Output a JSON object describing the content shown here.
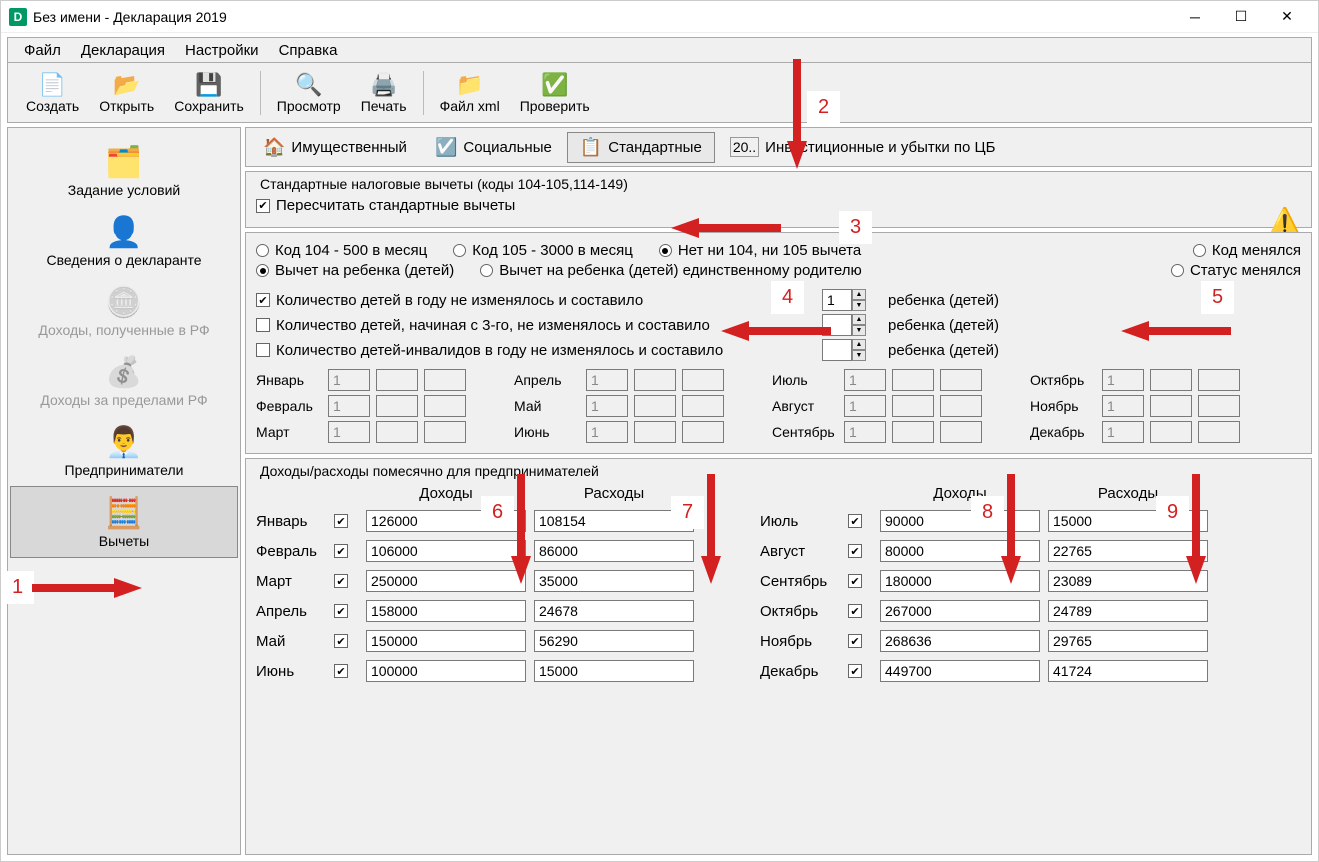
{
  "window": {
    "title": "Без имени - Декларация 2019"
  },
  "menu": {
    "file": "Файл",
    "declaration": "Декларация",
    "settings": "Настройки",
    "help": "Справка"
  },
  "toolbar": {
    "create": "Создать",
    "open": "Открыть",
    "save": "Сохранить",
    "preview": "Просмотр",
    "print": "Печать",
    "xml": "Файл xml",
    "check": "Проверить"
  },
  "sidebar": {
    "conditions": "Задание условий",
    "declarant": "Сведения о декларанте",
    "income_rf": "Доходы, полученные в РФ",
    "income_abroad": "Доходы за пределами РФ",
    "entrepreneur": "Предприниматели",
    "deductions": "Вычеты"
  },
  "tabs": {
    "property": "Имущественный",
    "social": "Социальные",
    "standard": "Стандартные",
    "investment": "Инвестиционные и убытки по ЦБ"
  },
  "group1": {
    "legend": "Стандартные налоговые вычеты (коды 104-105,114-149)",
    "recalc": "Пересчитать стандартные вычеты",
    "code104": "Код 104 - 500 в месяц",
    "code105": "Код 105 - 3000 в месяц",
    "noCode": "Нет ни 104, ни 105 вычета",
    "codeChanged": "Код менялся",
    "childDed": "Вычет на ребенка (детей)",
    "childDedSingle": "Вычет на ребенка (детей) единственному родителю",
    "statusChanged": "Статус менялся",
    "childrenConst": "Количество детей в году не изменялось и составило",
    "childrenFrom3": "Количество детей, начиная с 3-го, не изменялось и составило",
    "childrenDisabled": "Количество детей-инвалидов в году не изменялось и составило",
    "child_suffix": "ребенка (детей)",
    "children_count": "1"
  },
  "months": {
    "m1": "Январь",
    "m2": "Февраль",
    "m3": "Март",
    "m4": "Апрель",
    "m5": "Май",
    "m6": "Июнь",
    "m7": "Июль",
    "m8": "Август",
    "m9": "Сентябрь",
    "m10": "Октябрь",
    "m11": "Ноябрь",
    "m12": "Декабрь",
    "v1": "1",
    "v2": "1",
    "v3": "1",
    "v4": "1",
    "v5": "1",
    "v6": "1",
    "v7": "1",
    "v8": "1",
    "v9": "1",
    "v10": "1",
    "v11": "1",
    "v12": "1"
  },
  "ie": {
    "legend": "Доходы/расходы помесячно для предпринимателей",
    "income_h": "Доходы",
    "expense_h": "Расходы",
    "rows": [
      {
        "m": "Январь",
        "inc": "126000",
        "exp": "108154",
        "m2": "Июль",
        "inc2": "90000",
        "exp2": "15000"
      },
      {
        "m": "Февраль",
        "inc": "106000",
        "exp": "86000",
        "m2": "Август",
        "inc2": "80000",
        "exp2": "22765"
      },
      {
        "m": "Март",
        "inc": "250000",
        "exp": "35000",
        "m2": "Сентябрь",
        "inc2": "180000",
        "exp2": "23089"
      },
      {
        "m": "Апрель",
        "inc": "158000",
        "exp": "24678",
        "m2": "Октябрь",
        "inc2": "267000",
        "exp2": "24789"
      },
      {
        "m": "Май",
        "inc": "150000",
        "exp": "56290",
        "m2": "Ноябрь",
        "inc2": "268636",
        "exp2": "29765"
      },
      {
        "m": "Июнь",
        "inc": "100000",
        "exp": "15000",
        "m2": "Декабрь",
        "inc2": "449700",
        "exp2": "41724"
      }
    ]
  },
  "annotations": {
    "n1": "1",
    "n2": "2",
    "n3": "3",
    "n4": "4",
    "n5": "5",
    "n6": "6",
    "n7": "7",
    "n8": "8",
    "n9": "9"
  },
  "colors": {
    "arrow": "#d32020",
    "bg": "#f0f0f0",
    "border": "#aaa"
  }
}
